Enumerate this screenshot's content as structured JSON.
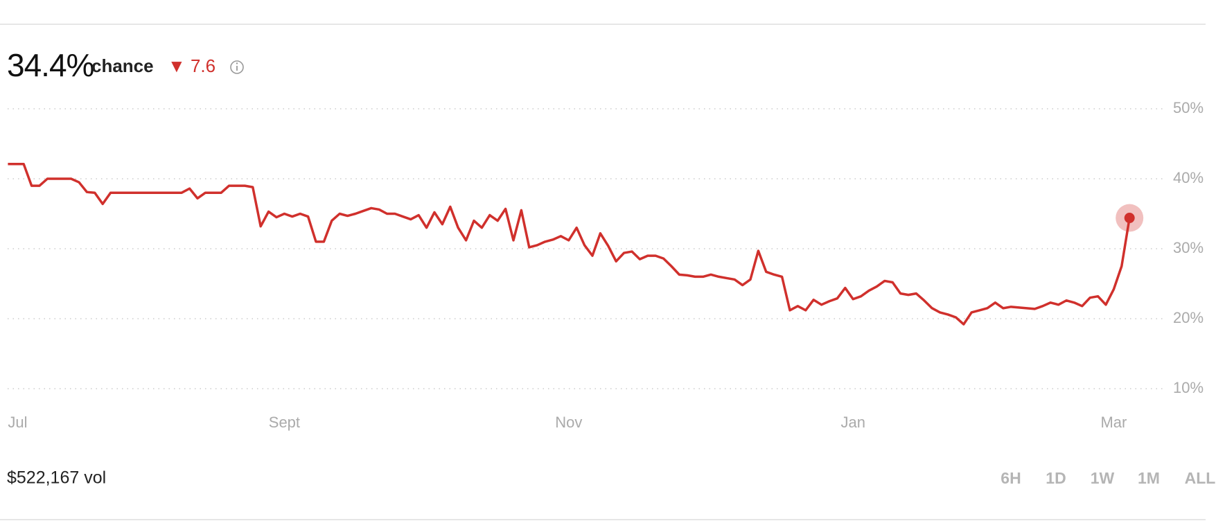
{
  "header": {
    "value": "34.4%",
    "suffix": "chance",
    "change": "▼ 7.6"
  },
  "chart_data": {
    "type": "line",
    "categories": [
      "Jul",
      null,
      null,
      null,
      null,
      null,
      null,
      null,
      null,
      null,
      null,
      null,
      null,
      null,
      null,
      null,
      null,
      null,
      null,
      null,
      null,
      null,
      null,
      null,
      null,
      null,
      null,
      null,
      null,
      null,
      null,
      null,
      null,
      null,
      null,
      "Sept",
      null,
      null,
      null,
      null,
      null,
      null,
      null,
      null,
      null,
      null,
      null,
      null,
      null,
      null,
      null,
      null,
      null,
      null,
      null,
      null,
      null,
      null,
      null,
      null,
      null,
      null,
      null,
      null,
      null,
      null,
      null,
      null,
      null,
      null,
      null,
      "Nov",
      null,
      null,
      null,
      null,
      null,
      null,
      null,
      null,
      null,
      null,
      null,
      null,
      null,
      null,
      null,
      null,
      null,
      null,
      null,
      null,
      null,
      null,
      null,
      null,
      null,
      null,
      null,
      null,
      null,
      null,
      null,
      null,
      null,
      null,
      null,
      "Jan",
      null,
      null,
      null,
      null,
      null,
      null,
      null,
      null,
      null,
      null,
      null,
      null,
      null,
      null,
      null,
      null,
      null,
      null,
      null,
      null,
      null,
      null,
      null,
      null,
      null,
      null,
      null,
      null,
      null,
      null,
      null,
      null,
      "Mar",
      null,
      null
    ],
    "series": [
      {
        "name": "chance",
        "color": "#d0302c",
        "values": [
          42.1,
          42.1,
          42.1,
          39,
          39,
          40,
          40,
          40,
          40,
          39.5,
          38.1,
          38,
          36.4,
          38,
          38,
          38,
          38,
          38,
          38,
          38,
          38,
          38,
          38,
          38.6,
          37.2,
          38,
          38,
          38,
          39,
          39,
          39,
          38.8,
          33.2,
          35.3,
          34.5,
          35,
          34.6,
          35,
          34.6,
          31,
          31,
          34,
          35,
          34.7,
          35,
          35.4,
          35.8,
          35.6,
          35,
          35,
          34.6,
          34.2,
          34.8,
          33,
          35.2,
          33.5,
          36,
          33,
          31.2,
          34,
          33,
          34.8,
          34,
          35.7,
          31.2,
          35.5,
          30.2,
          30.5,
          31,
          31.3,
          31.8,
          31.2,
          33,
          30.5,
          29,
          32.2,
          30.4,
          28.2,
          29.4,
          29.6,
          28.5,
          29,
          29,
          28.6,
          27.5,
          26.3,
          26.2,
          26,
          26,
          26.3,
          26,
          25.8,
          25.6,
          24.8,
          25.6,
          29.7,
          26.7,
          26.3,
          26,
          21.2,
          21.8,
          21.2,
          22.7,
          22,
          22.5,
          22.9,
          24.4,
          22.8,
          23.2,
          24,
          24.6,
          25.4,
          25.2,
          23.6,
          23.4,
          23.6,
          22.6,
          21.5,
          20.9,
          20.6,
          20.2,
          19.2,
          20.9,
          21.2,
          21.5,
          22.3,
          21.5,
          21.7,
          21.6,
          21.5,
          21.4,
          21.8,
          22.3,
          22,
          22.6,
          22.3,
          21.8,
          23,
          23.2,
          22,
          24.2,
          27.5,
          34.4
        ]
      }
    ],
    "ylim": [
      8,
      52
    ],
    "yticks": [
      {
        "value": 10,
        "label": "10%"
      },
      {
        "value": 20,
        "label": "20%"
      },
      {
        "value": 30,
        "label": "30%"
      },
      {
        "value": 40,
        "label": "40%"
      },
      {
        "value": 50,
        "label": "50%"
      }
    ],
    "grid": true
  },
  "footer": {
    "volume": "$522,167 vol",
    "ranges": [
      "6H",
      "1D",
      "1W",
      "1M",
      "ALL"
    ],
    "active_range": "ALL"
  }
}
